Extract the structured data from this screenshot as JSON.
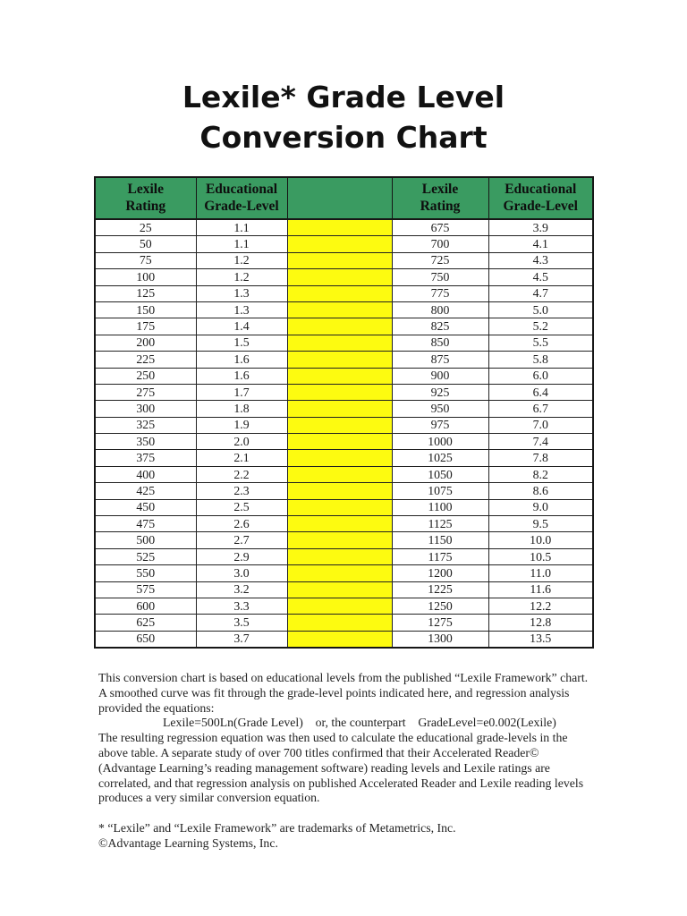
{
  "page": {
    "title_line1": "Lexile* Grade Level",
    "title_line2": "Conversion Chart"
  },
  "table": {
    "headers": {
      "lexile": "Lexile\nRating",
      "grade": "Educational\nGrade-Level"
    },
    "colors": {
      "header_bg": "#3a9b61",
      "highlight": "#fdfb10",
      "border": "#161616"
    },
    "rows": [
      {
        "l_lexile": "25",
        "l_grade": "1.1",
        "r_lexile": "675",
        "r_grade": "3.9"
      },
      {
        "l_lexile": "50",
        "l_grade": "1.1",
        "r_lexile": "700",
        "r_grade": "4.1"
      },
      {
        "l_lexile": "75",
        "l_grade": "1.2",
        "r_lexile": "725",
        "r_grade": "4.3"
      },
      {
        "l_lexile": "100",
        "l_grade": "1.2",
        "r_lexile": "750",
        "r_grade": "4.5"
      },
      {
        "l_lexile": "125",
        "l_grade": "1.3",
        "r_lexile": "775",
        "r_grade": "4.7"
      },
      {
        "l_lexile": "150",
        "l_grade": "1.3",
        "r_lexile": "800",
        "r_grade": "5.0"
      },
      {
        "l_lexile": "175",
        "l_grade": "1.4",
        "r_lexile": "825",
        "r_grade": "5.2"
      },
      {
        "l_lexile": "200",
        "l_grade": "1.5",
        "r_lexile": "850",
        "r_grade": "5.5"
      },
      {
        "l_lexile": "225",
        "l_grade": "1.6",
        "r_lexile": "875",
        "r_grade": "5.8"
      },
      {
        "l_lexile": "250",
        "l_grade": "1.6",
        "r_lexile": "900",
        "r_grade": "6.0"
      },
      {
        "l_lexile": "275",
        "l_grade": "1.7",
        "r_lexile": "925",
        "r_grade": "6.4"
      },
      {
        "l_lexile": "300",
        "l_grade": "1.8",
        "r_lexile": "950",
        "r_grade": "6.7"
      },
      {
        "l_lexile": "325",
        "l_grade": "1.9",
        "r_lexile": "975",
        "r_grade": "7.0"
      },
      {
        "l_lexile": "350",
        "l_grade": "2.0",
        "r_lexile": "1000",
        "r_grade": "7.4"
      },
      {
        "l_lexile": "375",
        "l_grade": "2.1",
        "r_lexile": "1025",
        "r_grade": "7.8"
      },
      {
        "l_lexile": "400",
        "l_grade": "2.2",
        "r_lexile": "1050",
        "r_grade": "8.2"
      },
      {
        "l_lexile": "425",
        "l_grade": "2.3",
        "r_lexile": "1075",
        "r_grade": "8.6"
      },
      {
        "l_lexile": "450",
        "l_grade": "2.5",
        "r_lexile": "1100",
        "r_grade": "9.0"
      },
      {
        "l_lexile": "475",
        "l_grade": "2.6",
        "r_lexile": "1125",
        "r_grade": "9.5"
      },
      {
        "l_lexile": "500",
        "l_grade": "2.7",
        "r_lexile": "1150",
        "r_grade": "10.0"
      },
      {
        "l_lexile": "525",
        "l_grade": "2.9",
        "r_lexile": "1175",
        "r_grade": "10.5"
      },
      {
        "l_lexile": "550",
        "l_grade": "3.0",
        "r_lexile": "1200",
        "r_grade": "11.0"
      },
      {
        "l_lexile": "575",
        "l_grade": "3.2",
        "r_lexile": "1225",
        "r_grade": "11.6"
      },
      {
        "l_lexile": "600",
        "l_grade": "3.3",
        "r_lexile": "1250",
        "r_grade": "12.2"
      },
      {
        "l_lexile": "625",
        "l_grade": "3.5",
        "r_lexile": "1275",
        "r_grade": "12.8"
      },
      {
        "l_lexile": "650",
        "l_grade": "3.7",
        "r_lexile": "1300",
        "r_grade": "13.5"
      }
    ]
  },
  "notes": {
    "para1": "This conversion chart is based on educational levels from the published “Lexile Framework” chart.  A smoothed curve was fit through the grade-level points indicated here, and regression analysis provided the equations:",
    "equation": "Lexile=500Ln(Grade Level)    or, the counterpart    GradeLevel=e0.002(Lexile)",
    "para2": "The resulting regression equation was then used to calculate the educational grade-levels in the above table. A separate study of over 700 titles confirmed that their Accelerated Reader© (Advantage Learning’s reading management software) reading levels and Lexile ratings are correlated, and that regression analysis on published Accelerated Reader and Lexile reading levels produces a very similar conversion equation.",
    "footnote1": "* “Lexile” and “Lexile Framework” are trademarks of Metametrics, Inc.",
    "footnote2": "©Advantage Learning Systems, Inc."
  }
}
